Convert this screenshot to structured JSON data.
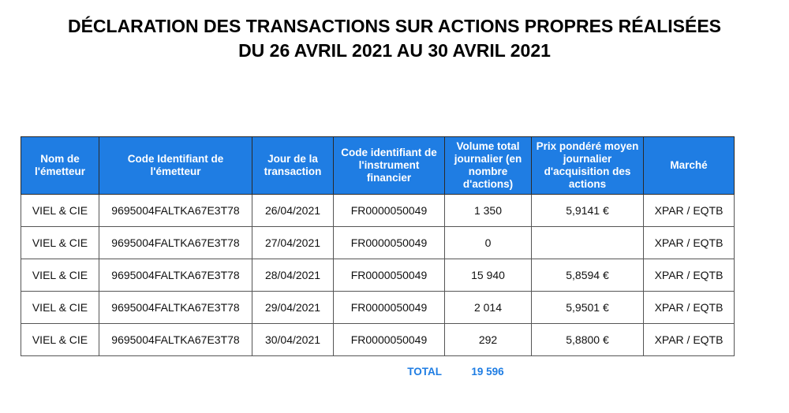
{
  "title": {
    "line1": "DÉCLARATION DES TRANSACTIONS SUR ACTIONS PROPRES RÉALISÉES",
    "line2": "DU 26 AVRIL 2021 AU 30 AVRIL 2021"
  },
  "table": {
    "headers": [
      "Nom de l'émetteur",
      "Code Identifiant de l'émetteur",
      "Jour de la transaction",
      "Code identifiant de l'instrument financier",
      "Volume total journalier (en nombre d'actions)",
      "Prix pondéré moyen journalier d'acquisition des actions",
      "Marché"
    ],
    "rows": [
      [
        "VIEL & CIE",
        "9695004FALTKA67E3T78",
        "26/04/2021",
        "FR0000050049",
        "1 350",
        "5,9141 €",
        "XPAR / EQTB"
      ],
      [
        "VIEL & CIE",
        "9695004FALTKA67E3T78",
        "27/04/2021",
        "FR0000050049",
        "0",
        "",
        "XPAR / EQTB"
      ],
      [
        "VIEL & CIE",
        "9695004FALTKA67E3T78",
        "28/04/2021",
        "FR0000050049",
        "15 940",
        "5,8594 €",
        "XPAR / EQTB"
      ],
      [
        "VIEL & CIE",
        "9695004FALTKA67E3T78",
        "29/04/2021",
        "FR0000050049",
        "2 014",
        "5,9501 €",
        "XPAR / EQTB"
      ],
      [
        "VIEL & CIE",
        "9695004FALTKA67E3T78",
        "30/04/2021",
        "FR0000050049",
        "292",
        "5,8800 €",
        "XPAR / EQTB"
      ]
    ]
  },
  "total": {
    "label": "TOTAL",
    "value": "19 596"
  },
  "colors": {
    "header_bg": "#1f7de3",
    "total_text": "#1f7de3"
  }
}
